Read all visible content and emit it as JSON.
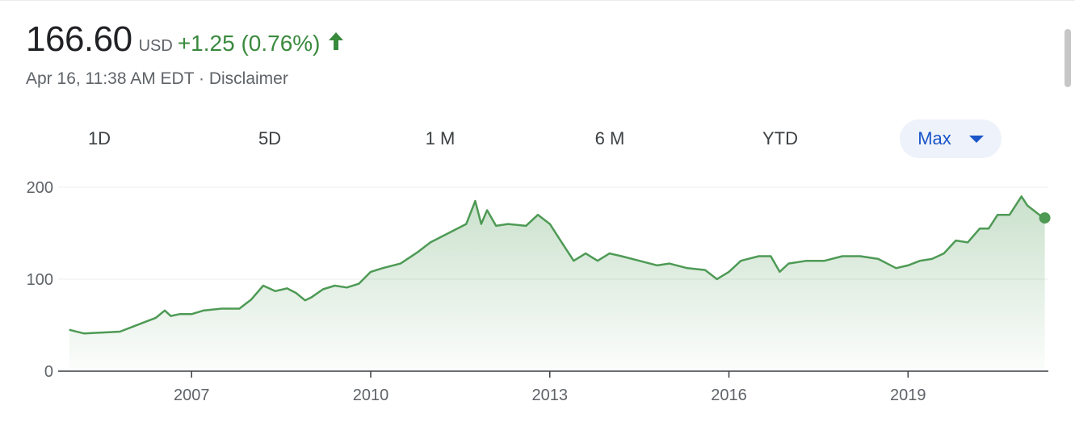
{
  "quote": {
    "price": "166.60",
    "currency": "USD",
    "change": "+1.25 (0.76%)",
    "timestamp": "Apr 16, 11:38 AM EDT",
    "separator": " · ",
    "disclaimer": "Disclaimer",
    "change_color": "#3a8a3e",
    "change_direction": "up-arrow-icon"
  },
  "tabs": [
    {
      "label": "1D",
      "active": false
    },
    {
      "label": "5D",
      "active": false
    },
    {
      "label": "1 M",
      "active": false
    },
    {
      "label": "6 M",
      "active": false
    },
    {
      "label": "YTD",
      "active": false
    },
    {
      "label": "Max",
      "active": true
    }
  ],
  "chart_data": {
    "type": "area",
    "title": "",
    "xlabel": "",
    "ylabel": "",
    "ylim": [
      0,
      200
    ],
    "yticks": [
      0,
      100,
      200
    ],
    "xticks": [
      {
        "value": 2007,
        "label": "2007"
      },
      {
        "value": 2010,
        "label": "2010"
      },
      {
        "value": 2013,
        "label": "2013"
      },
      {
        "value": 2016,
        "label": "2016"
      },
      {
        "value": 2019,
        "label": "2019"
      }
    ],
    "xlim": [
      2004.9,
      2021.35
    ],
    "grid": true,
    "line_color": "#4e9a55",
    "series": [
      {
        "x": [
          2004.95,
          2005.2,
          2005.5,
          2005.8,
          2006.0,
          2006.2,
          2006.4,
          2006.55,
          2006.65,
          2006.8,
          2007.0,
          2007.2,
          2007.5,
          2007.8,
          2008.0,
          2008.2,
          2008.4,
          2008.6,
          2008.75,
          2008.9,
          2009.0,
          2009.2,
          2009.4,
          2009.6,
          2009.8,
          2010.0,
          2010.2,
          2010.5,
          2010.8,
          2011.0,
          2011.3,
          2011.6,
          2011.75,
          2011.85,
          2011.95,
          2012.1,
          2012.3,
          2012.6,
          2012.8,
          2013.0,
          2013.2,
          2013.4,
          2013.6,
          2013.8,
          2014.0,
          2014.2,
          2014.5,
          2014.8,
          2015.0,
          2015.3,
          2015.6,
          2015.8,
          2016.0,
          2016.2,
          2016.5,
          2016.7,
          2016.85,
          2017.0,
          2017.3,
          2017.6,
          2017.9,
          2018.2,
          2018.5,
          2018.8,
          2019.0,
          2019.2,
          2019.4,
          2019.6,
          2019.8,
          2020.0,
          2020.2,
          2020.35,
          2020.5,
          2020.7,
          2020.9,
          2021.0,
          2021.1,
          2021.2,
          2021.29
        ],
        "values": [
          45,
          41,
          42,
          43,
          48,
          53,
          58,
          66,
          60,
          62,
          62,
          66,
          68,
          68,
          78,
          93,
          87,
          90,
          85,
          77,
          80,
          89,
          93,
          91,
          95,
          108,
          112,
          117,
          130,
          140,
          150,
          160,
          185,
          160,
          175,
          158,
          160,
          158,
          170,
          160,
          140,
          120,
          128,
          120,
          128,
          125,
          120,
          115,
          117,
          112,
          110,
          100,
          108,
          120,
          125,
          125,
          108,
          117,
          120,
          120,
          125,
          125,
          122,
          112,
          115,
          120,
          122,
          128,
          142,
          140,
          155,
          155,
          170,
          170,
          190,
          180,
          175,
          170,
          166.6
        ]
      }
    ],
    "last_value": 166.6
  }
}
